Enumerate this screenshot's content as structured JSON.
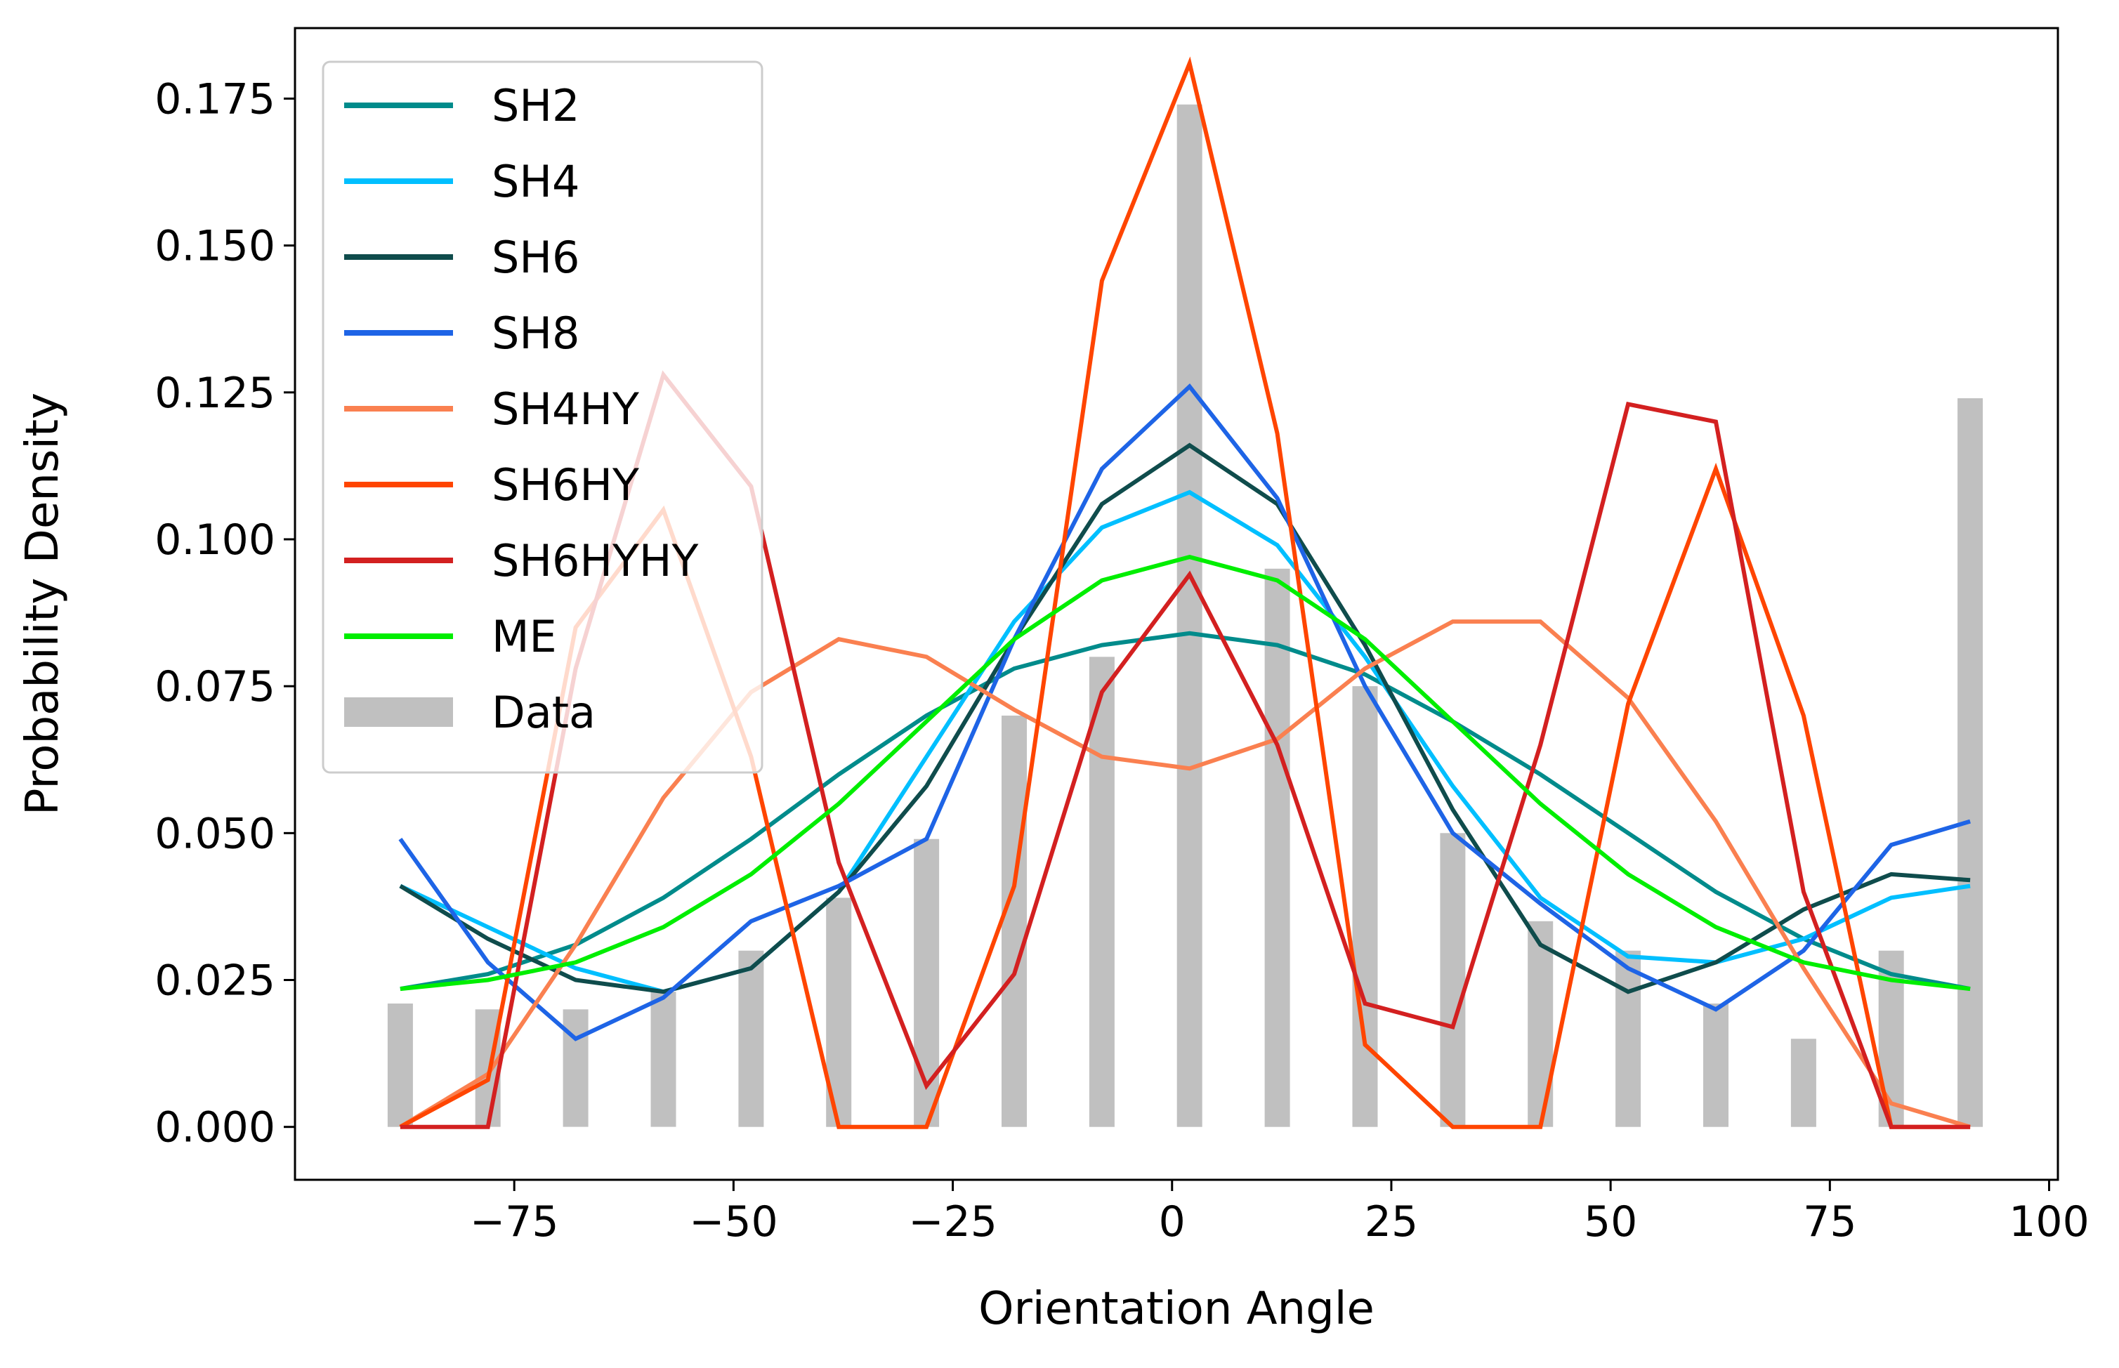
{
  "chart_data": {
    "type": "line",
    "title": "",
    "xlabel": "Orientation Angle",
    "ylabel": "Probability Density",
    "xlim": [
      -100,
      101
    ],
    "ylim": [
      -0.009,
      0.187
    ],
    "x_ticks": [
      -75,
      -50,
      -25,
      0,
      25,
      50,
      75,
      100
    ],
    "x_tick_labels": [
      "−75",
      "−50",
      "−25",
      "0",
      "25",
      "50",
      "75",
      "100"
    ],
    "y_ticks": [
      0.0,
      0.025,
      0.05,
      0.075,
      0.1,
      0.125,
      0.15,
      0.175
    ],
    "y_tick_labels": [
      "0.000",
      "0.025",
      "0.050",
      "0.075",
      "0.100",
      "0.125",
      "0.150",
      "0.175"
    ],
    "grid": false,
    "legend_position": "top-left",
    "x": [
      -88,
      -78,
      -68,
      -58,
      -48,
      -38,
      -28,
      -18,
      -8,
      2,
      12,
      22,
      32,
      42,
      52,
      62,
      72,
      82,
      91
    ],
    "series": [
      {
        "name": "SH2",
        "color": "#008b8b",
        "values": [
          0.0235,
          0.026,
          0.031,
          0.039,
          0.049,
          0.06,
          0.07,
          0.078,
          0.082,
          0.084,
          0.082,
          0.077,
          0.069,
          0.06,
          0.05,
          0.04,
          0.032,
          0.026,
          0.0235
        ]
      },
      {
        "name": "SH4",
        "color": "#00bfff",
        "values": [
          0.041,
          0.034,
          0.027,
          0.023,
          0.027,
          0.04,
          0.063,
          0.086,
          0.102,
          0.108,
          0.099,
          0.08,
          0.058,
          0.039,
          0.029,
          0.028,
          0.032,
          0.039,
          0.041
        ]
      },
      {
        "name": "SH6",
        "color": "#0f4c4c",
        "values": [
          0.041,
          0.032,
          0.025,
          0.023,
          0.027,
          0.04,
          0.058,
          0.083,
          0.106,
          0.116,
          0.106,
          0.082,
          0.054,
          0.031,
          0.023,
          0.028,
          0.037,
          0.043,
          0.042
        ]
      },
      {
        "name": "SH8",
        "color": "#1e64e6",
        "values": [
          0.049,
          0.028,
          0.015,
          0.022,
          0.035,
          0.041,
          0.049,
          0.083,
          0.112,
          0.126,
          0.107,
          0.075,
          0.05,
          0.038,
          0.027,
          0.02,
          0.03,
          0.048,
          0.052
        ]
      },
      {
        "name": "SH4HY",
        "color": "#fa8050",
        "values": [
          0.0,
          0.009,
          0.031,
          0.056,
          0.074,
          0.083,
          0.08,
          0.071,
          0.063,
          0.061,
          0.066,
          0.078,
          0.086,
          0.086,
          0.073,
          0.052,
          0.027,
          0.004,
          0.0
        ]
      },
      {
        "name": "SH6HY",
        "color": "#ff4500",
        "values": [
          0.0,
          0.008,
          0.085,
          0.105,
          0.063,
          0.0,
          0.0,
          0.041,
          0.144,
          0.181,
          0.118,
          0.014,
          0.0,
          0.0,
          0.072,
          0.112,
          0.07,
          0.0,
          0.0
        ]
      },
      {
        "name": "SH6HYHY",
        "color": "#d32020",
        "values": [
          0.0,
          0.0,
          0.078,
          0.128,
          0.109,
          0.045,
          0.007,
          0.026,
          0.074,
          0.094,
          0.065,
          0.021,
          0.017,
          0.065,
          0.123,
          0.12,
          0.04,
          0.0,
          0.0
        ]
      },
      {
        "name": "ME",
        "color": "#00ee00",
        "values": [
          0.0235,
          0.025,
          0.028,
          0.034,
          0.043,
          0.055,
          0.069,
          0.083,
          0.093,
          0.097,
          0.093,
          0.083,
          0.069,
          0.055,
          0.043,
          0.034,
          0.028,
          0.025,
          0.0235
        ]
      }
    ],
    "bars": {
      "name": "Data",
      "color": "#c0c0c0",
      "x": [
        -88,
        -78,
        -68,
        -58,
        -48,
        -38,
        -28,
        -18,
        -8,
        2,
        12,
        22,
        32,
        42,
        52,
        62,
        72,
        82,
        91
      ],
      "values": [
        0.021,
        0.02,
        0.02,
        0.023,
        0.03,
        0.039,
        0.049,
        0.07,
        0.08,
        0.174,
        0.095,
        0.075,
        0.05,
        0.035,
        0.03,
        0.021,
        0.015,
        0.03,
        0.124
      ]
    }
  }
}
